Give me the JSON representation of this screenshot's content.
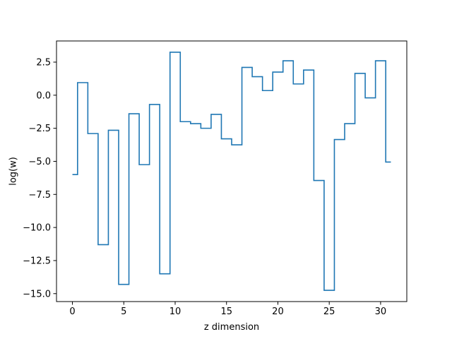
{
  "chart_data": {
    "type": "line",
    "drawstyle": "steps-mid",
    "title": "",
    "xlabel": "z dimension",
    "ylabel": "log(w)",
    "xlim": [
      -1.55,
      32.55
    ],
    "ylim": [
      -15.6,
      4.1
    ],
    "xticks": [
      0,
      5,
      10,
      15,
      20,
      25,
      30
    ],
    "xtick_labels": [
      "0",
      "5",
      "10",
      "15",
      "20",
      "25",
      "30"
    ],
    "yticks": [
      2.5,
      0.0,
      -2.5,
      -5.0,
      -7.5,
      -10.0,
      -12.5,
      -15.0
    ],
    "ytick_labels": [
      "2.5",
      "0.0",
      "−2.5",
      "−5.0",
      "−7.5",
      "−10.0",
      "−12.5",
      "−15.0"
    ],
    "grid": false,
    "series": [
      {
        "color": "#1f77b4",
        "x": [
          0,
          1,
          2,
          3,
          4,
          5,
          6,
          7,
          8,
          9,
          10,
          11,
          12,
          13,
          14,
          15,
          16,
          17,
          18,
          19,
          20,
          21,
          22,
          23,
          24,
          25,
          26,
          27,
          28,
          29,
          30,
          31
        ],
        "y": [
          -6.0,
          0.95,
          -2.9,
          -11.3,
          -2.65,
          -14.3,
          -1.4,
          -5.25,
          -0.7,
          -13.5,
          3.25,
          -2.0,
          -2.15,
          -2.5,
          -1.45,
          -3.3,
          -3.75,
          2.1,
          1.4,
          0.35,
          1.75,
          2.6,
          0.85,
          1.9,
          -6.45,
          -14.75,
          -3.35,
          -2.15,
          1.65,
          -0.2,
          2.6,
          -5.05
        ]
      }
    ]
  }
}
